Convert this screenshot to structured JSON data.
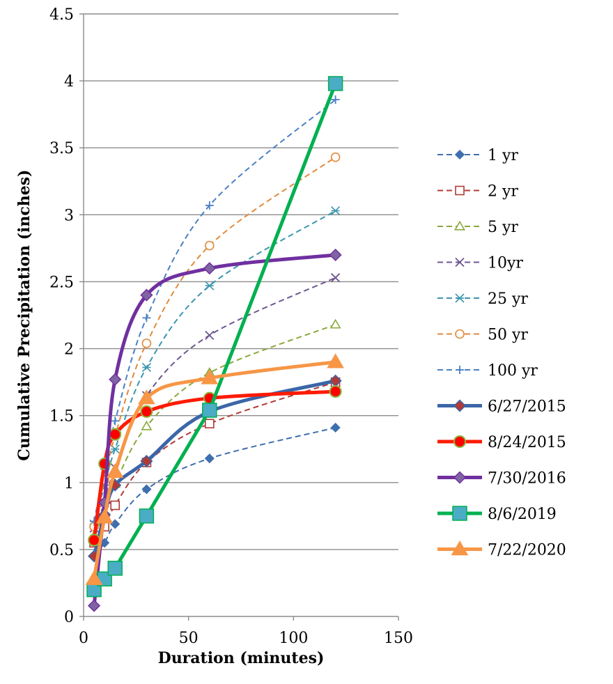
{
  "chart_data": {
    "type": "line",
    "xlabel": "Duration (minutes)",
    "ylabel": "Cumulative Precipitation (inches)",
    "xlim": [
      0,
      150
    ],
    "ylim": [
      0,
      4.5
    ],
    "x_ticks": [
      0,
      50,
      100,
      150
    ],
    "y_ticks": [
      0,
      0.5,
      1,
      1.5,
      2,
      2.5,
      3,
      3.5,
      4,
      4.5
    ],
    "grid": "horizontal",
    "legend_position": "right",
    "series": [
      {
        "name": "1 yr",
        "style": "dashed",
        "marker": "diamond",
        "color": "#3f6fae",
        "points": [
          [
            5,
            0.45
          ],
          [
            10,
            0.55
          ],
          [
            15,
            0.69
          ],
          [
            30,
            0.95
          ],
          [
            60,
            1.18
          ],
          [
            120,
            1.41
          ]
        ]
      },
      {
        "name": "2 yr",
        "style": "dashed",
        "marker": "square-open",
        "color": "#b03a35",
        "points": [
          [
            5,
            0.55
          ],
          [
            10,
            0.67
          ],
          [
            15,
            0.83
          ],
          [
            30,
            1.15
          ],
          [
            60,
            1.44
          ],
          [
            120,
            1.75
          ]
        ]
      },
      {
        "name": "5 yr",
        "style": "dashed",
        "marker": "triangle-open",
        "color": "#8aa83c",
        "points": [
          [
            5,
            0.6
          ],
          [
            10,
            0.78
          ],
          [
            15,
            0.99
          ],
          [
            30,
            1.42
          ],
          [
            60,
            1.82
          ],
          [
            120,
            2.18
          ]
        ]
      },
      {
        "name": "10yr",
        "style": "dashed",
        "marker": "x",
        "color": "#6e5690",
        "points": [
          [
            5,
            0.66
          ],
          [
            10,
            0.85
          ],
          [
            15,
            1.11
          ],
          [
            30,
            1.65
          ],
          [
            60,
            2.1
          ],
          [
            120,
            2.53
          ]
        ]
      },
      {
        "name": "25 yr",
        "style": "dashed",
        "marker": "asterisk",
        "color": "#3a96ad",
        "points": [
          [
            5,
            0.69
          ],
          [
            10,
            0.98
          ],
          [
            15,
            1.25
          ],
          [
            30,
            1.86
          ],
          [
            60,
            2.47
          ],
          [
            120,
            3.03
          ]
        ]
      },
      {
        "name": "50 yr",
        "style": "dashed",
        "marker": "circle-open",
        "color": "#e08a3c",
        "points": [
          [
            5,
            0.67
          ],
          [
            10,
            1.02
          ],
          [
            15,
            1.35
          ],
          [
            30,
            2.04
          ],
          [
            60,
            2.77
          ],
          [
            120,
            3.43
          ]
        ]
      },
      {
        "name": "100 yr",
        "style": "dashed",
        "marker": "plus",
        "color": "#4a80c4",
        "points": [
          [
            5,
            0.71
          ],
          [
            10,
            1.1
          ],
          [
            15,
            1.46
          ],
          [
            30,
            2.23
          ],
          [
            60,
            3.07
          ],
          [
            120,
            3.86
          ]
        ]
      },
      {
        "name": "6/27/2015",
        "style": "solid",
        "marker": "diamond",
        "color": "#3b66a8",
        "marker_fill": "#b03a35",
        "points": [
          [
            5,
            0.45
          ],
          [
            10,
            0.76
          ],
          [
            15,
            0.98
          ],
          [
            30,
            1.16
          ],
          [
            60,
            1.53
          ],
          [
            120,
            1.76
          ]
        ]
      },
      {
        "name": "8/24/2015",
        "style": "solid",
        "marker": "circle",
        "color": "#ff1a00",
        "marker_fill": "#ff0000",
        "marker_stroke": "#8db33a",
        "points": [
          [
            5,
            0.57
          ],
          [
            10,
            1.14
          ],
          [
            15,
            1.36
          ],
          [
            30,
            1.53
          ],
          [
            60,
            1.63
          ],
          [
            120,
            1.68
          ]
        ]
      },
      {
        "name": "7/30/2016",
        "style": "solid",
        "marker": "diamond",
        "color": "#7030a0",
        "marker_fill": "#8064a2",
        "points": [
          [
            5,
            0.08
          ],
          [
            10,
            0.85
          ],
          [
            15,
            1.77
          ],
          [
            30,
            2.4
          ],
          [
            60,
            2.6
          ],
          [
            120,
            2.7
          ]
        ]
      },
      {
        "name": "8/6/2019",
        "style": "solid",
        "marker": "square",
        "color": "#00b050",
        "marker_fill": "#4bacc6",
        "points": [
          [
            5,
            0.2
          ],
          [
            10,
            0.28
          ],
          [
            15,
            0.36
          ],
          [
            30,
            0.75
          ],
          [
            60,
            1.54
          ],
          [
            120,
            3.98
          ]
        ]
      },
      {
        "name": "7/22/2020",
        "style": "solid",
        "marker": "triangle",
        "color": "#f79646",
        "marker_fill": "#f79646",
        "points": [
          [
            5,
            0.28
          ],
          [
            10,
            0.74
          ],
          [
            15,
            1.08
          ],
          [
            30,
            1.63
          ],
          [
            60,
            1.78
          ],
          [
            120,
            1.9
          ]
        ]
      }
    ]
  }
}
